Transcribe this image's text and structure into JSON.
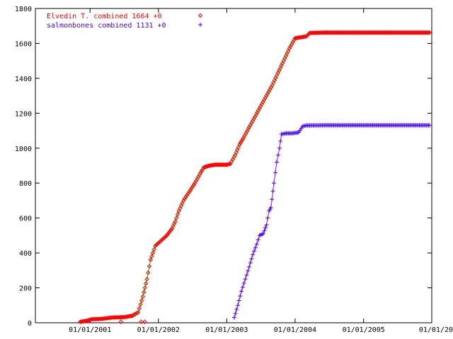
{
  "chart_data": {
    "type": "scatter",
    "title": "",
    "xlabel": "",
    "ylabel": "",
    "legend_position": "top-left",
    "grid": false,
    "x_axis": {
      "type": "date",
      "range": [
        "2000-03-15",
        "2005-12-31"
      ],
      "ticks": [
        "2001-01-01",
        "2002-01-01",
        "2003-01-01",
        "2004-01-01",
        "2005-01-01",
        "2006-01-01"
      ],
      "tick_labels": [
        "01/01/2001",
        "01/01/2002",
        "01/01/2003",
        "01/01/2004",
        "01/01/2005",
        "01/01/20"
      ]
    },
    "y_axis": {
      "range": [
        0,
        1800
      ],
      "ticks": [
        0,
        200,
        400,
        600,
        800,
        1000,
        1200,
        1400,
        1600,
        1800
      ],
      "tick_labels": [
        "0",
        "200",
        "400",
        "600",
        "800",
        "1000",
        "1200",
        "1400",
        "1600",
        "1800"
      ]
    },
    "series": [
      {
        "name": "Elvedin T. combined 1664 +0",
        "marker_glyph": "⋄",
        "color": "#ff0000",
        "trend_color": "#00c000",
        "points": [
          [
            "2000-11-10",
            5
          ],
          [
            "2000-12-15",
            12
          ],
          [
            "2001-01-10",
            20
          ],
          [
            "2001-03-01",
            22
          ],
          [
            "2001-05-01",
            30
          ],
          [
            "2001-07-01",
            32
          ],
          [
            "2001-08-15",
            40
          ],
          [
            "2001-09-15",
            60
          ],
          [
            "2001-10-10",
            150
          ],
          [
            "2001-11-01",
            250
          ],
          [
            "2001-11-20",
            360
          ],
          [
            "2001-12-15",
            440
          ],
          [
            "2002-01-15",
            470
          ],
          [
            "2002-02-15",
            500
          ],
          [
            "2002-03-15",
            540
          ],
          [
            "2002-04-01",
            580
          ],
          [
            "2002-04-20",
            640
          ],
          [
            "2002-05-15",
            700
          ],
          [
            "2002-06-15",
            750
          ],
          [
            "2002-07-15",
            800
          ],
          [
            "2002-08-15",
            860
          ],
          [
            "2002-09-01",
            890
          ],
          [
            "2002-10-01",
            900
          ],
          [
            "2002-11-01",
            905
          ],
          [
            "2002-12-01",
            905
          ],
          [
            "2003-01-01",
            905
          ],
          [
            "2003-01-20",
            910
          ],
          [
            "2003-02-15",
            960
          ],
          [
            "2003-03-10",
            1020
          ],
          [
            "2003-04-01",
            1060
          ],
          [
            "2003-05-01",
            1120
          ],
          [
            "2003-06-01",
            1180
          ],
          [
            "2003-07-01",
            1240
          ],
          [
            "2003-08-01",
            1300
          ],
          [
            "2003-09-01",
            1360
          ],
          [
            "2003-10-01",
            1430
          ],
          [
            "2003-11-01",
            1500
          ],
          [
            "2003-12-01",
            1570
          ],
          [
            "2004-01-01",
            1630
          ],
          [
            "2004-02-01",
            1635
          ],
          [
            "2004-03-01",
            1640
          ],
          [
            "2004-03-20",
            1660
          ],
          [
            "2004-06-01",
            1662
          ],
          [
            "2004-10-01",
            1662
          ],
          [
            "2005-01-01",
            1662
          ],
          [
            "2005-06-01",
            1662
          ],
          [
            "2005-12-20",
            1662
          ]
        ],
        "outliers": [
          [
            "2001-06-15",
            5
          ],
          [
            "2001-10-01",
            5
          ],
          [
            "2001-10-20",
            5
          ]
        ]
      },
      {
        "name": "salmonbones combined 1131 +0",
        "marker_glyph": "+",
        "color": "#4000ff",
        "trend_color": "#c000ff",
        "points": [
          [
            "2003-02-10",
            30
          ],
          [
            "2003-03-01",
            100
          ],
          [
            "2003-03-20",
            180
          ],
          [
            "2003-04-10",
            250
          ],
          [
            "2003-05-01",
            320
          ],
          [
            "2003-05-20",
            390
          ],
          [
            "2003-06-10",
            450
          ],
          [
            "2003-06-25",
            500
          ],
          [
            "2003-07-15",
            510
          ],
          [
            "2003-08-01",
            560
          ],
          [
            "2003-08-15",
            640
          ],
          [
            "2003-08-25",
            660
          ],
          [
            "2003-09-10",
            800
          ],
          [
            "2003-09-25",
            920
          ],
          [
            "2003-10-10",
            1000
          ],
          [
            "2003-10-20",
            1080
          ],
          [
            "2003-11-15",
            1085
          ],
          [
            "2003-12-15",
            1085
          ],
          [
            "2004-01-20",
            1090
          ],
          [
            "2004-02-10",
            1125
          ],
          [
            "2004-03-01",
            1130
          ],
          [
            "2004-06-01",
            1131
          ],
          [
            "2004-10-01",
            1131
          ],
          [
            "2005-01-01",
            1131
          ],
          [
            "2005-06-01",
            1131
          ],
          [
            "2005-12-20",
            1131
          ]
        ]
      }
    ]
  }
}
